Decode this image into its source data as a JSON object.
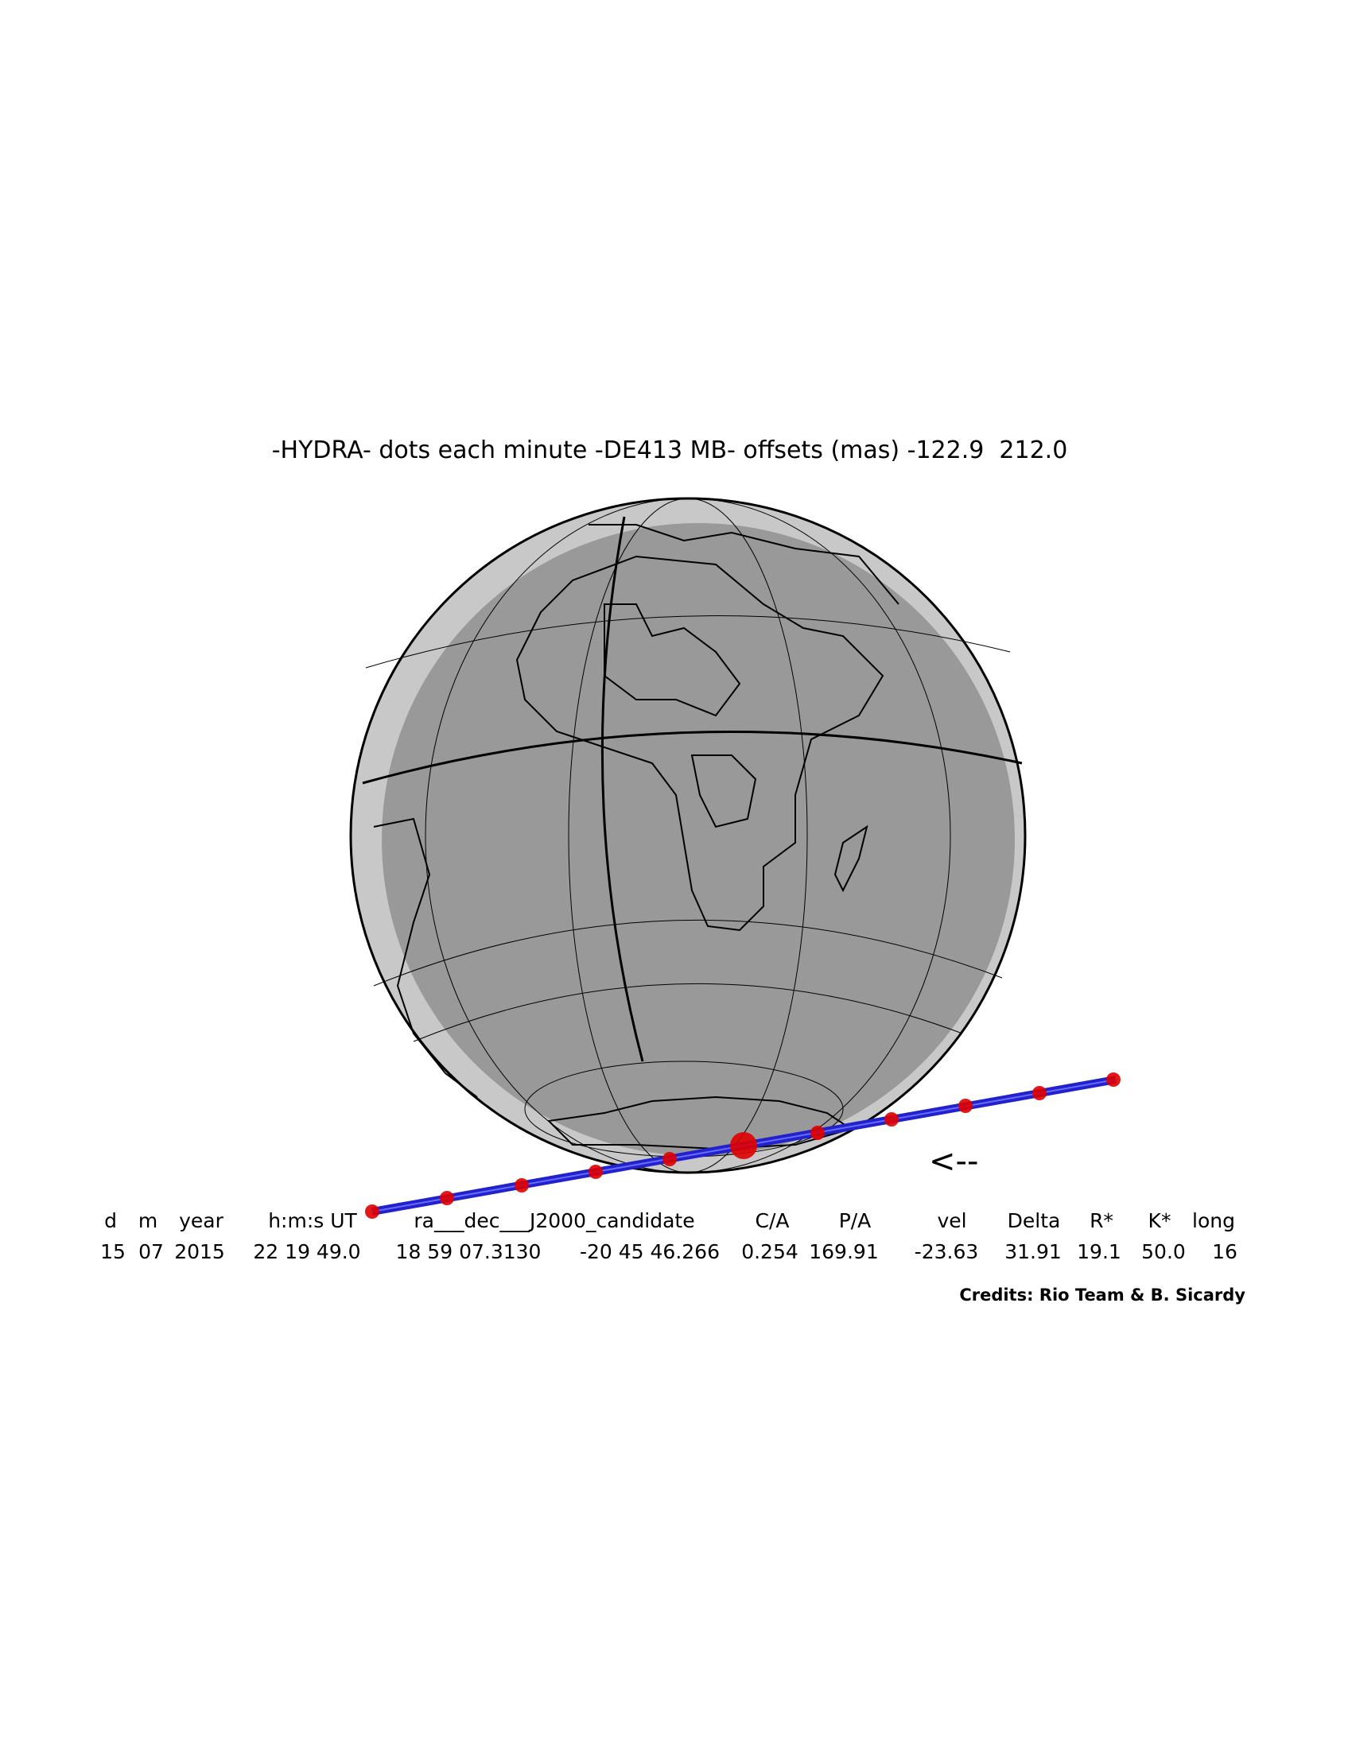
{
  "title": "-HYDRA- dots each minute -DE413 MB- offsets (mas) -122.9  212.0",
  "direction_arrow": "<--",
  "table": {
    "headers": [
      "d",
      "m",
      "year",
      "h:m:s UT",
      "ra___dec___J2000_candidate",
      "C/A",
      "P/A",
      "vel",
      "Delta",
      "R*",
      "K*",
      "long"
    ],
    "values": [
      "15",
      "07",
      "2015",
      "22 19 49.0",
      "18 59 07.3130",
      "-20 45 46.266",
      "0.254",
      "169.91",
      "-23.63",
      "31.91",
      "19.1",
      "50.0",
      "16"
    ]
  },
  "credits": "Credits: Rio Team & B. Sicardy"
}
